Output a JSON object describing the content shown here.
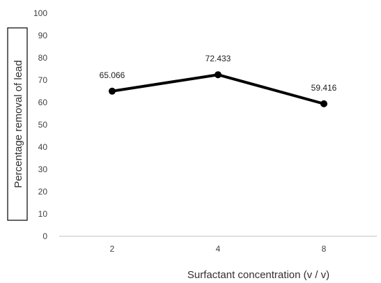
{
  "chart_data": {
    "type": "line",
    "categories": [
      "2",
      "4",
      "8"
    ],
    "series": [
      {
        "values": [
          65.066,
          72.433,
          59.416
        ]
      }
    ],
    "data_labels": [
      "65.066",
      "72.433",
      "59.416"
    ],
    "xlabel": "Surfactant concentration (v / v)",
    "ylabel": "Percentage removal of lead",
    "ylim": [
      0,
      100
    ],
    "yticks": [
      "0",
      "10",
      "20",
      "30",
      "40",
      "50",
      "60",
      "70",
      "80",
      "90",
      "100"
    ],
    "grid": false,
    "line_color": "#000000",
    "axis_color": "#bfbfbf"
  }
}
